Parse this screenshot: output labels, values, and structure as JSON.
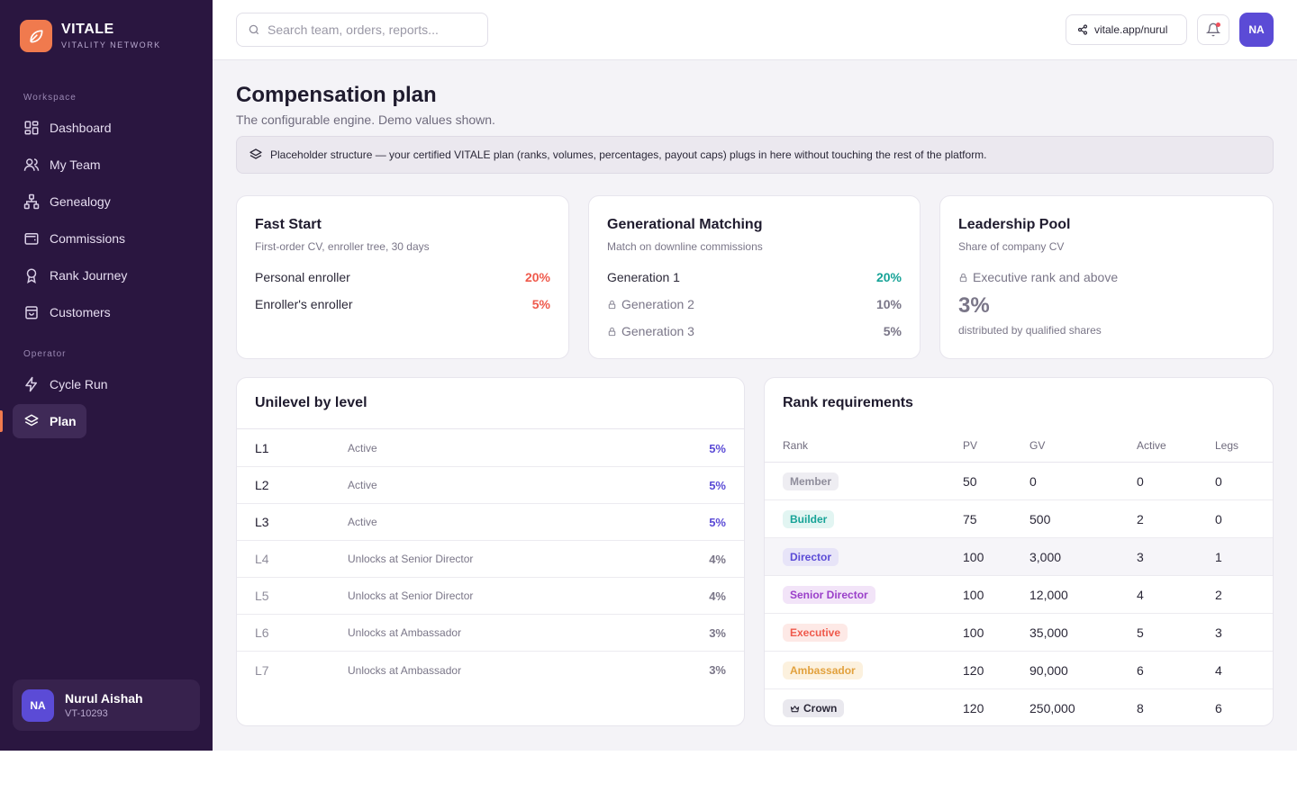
{
  "brand": {
    "name": "VITALE",
    "tagline": "VITALITY NETWORK"
  },
  "sidebar": {
    "sections": [
      {
        "label": "Workspace"
      },
      {
        "label": "Operator"
      }
    ],
    "items": [
      {
        "label": "Dashboard",
        "icon": "grid-icon"
      },
      {
        "label": "My Team",
        "icon": "users-icon"
      },
      {
        "label": "Genealogy",
        "icon": "tree-icon"
      },
      {
        "label": "Commissions",
        "icon": "wallet-icon"
      },
      {
        "label": "Rank Journey",
        "icon": "award-icon"
      },
      {
        "label": "Customers",
        "icon": "bag-icon"
      },
      {
        "label": "Cycle Run",
        "icon": "bolt-icon"
      },
      {
        "label": "Plan",
        "icon": "layers-icon",
        "active": true
      }
    ],
    "user": {
      "initials": "NA",
      "name": "Nurul Aishah",
      "id": "VT-10293"
    }
  },
  "topbar": {
    "search_placeholder": "Search team, orders, reports...",
    "share_link": "vitale.app/nurul",
    "avatar_initials": "NA"
  },
  "page": {
    "title": "Compensation plan",
    "subtitle": "The configurable engine. Demo values shown.",
    "notice": "Placeholder structure — your certified VITALE plan (ranks, volumes, percentages, payout caps) plugs in here without touching the rest of the platform."
  },
  "fast_start": {
    "title": "Fast Start",
    "subtitle": "First-order CV, enroller tree, 30 days",
    "rows": [
      {
        "label": "Personal enroller",
        "value": "20%"
      },
      {
        "label": "Enroller's enroller",
        "value": "5%"
      }
    ]
  },
  "generational": {
    "title": "Generational Matching",
    "subtitle": "Match on downline commissions",
    "rows": [
      {
        "label": "Generation 1",
        "value": "20%",
        "locked": false
      },
      {
        "label": "Generation 2",
        "value": "10%",
        "locked": true
      },
      {
        "label": "Generation 3",
        "value": "5%",
        "locked": true
      }
    ]
  },
  "leadership": {
    "title": "Leadership Pool",
    "subtitle": "Share of company CV",
    "requirement": "Executive rank and above",
    "value": "3%",
    "note": "distributed by qualified shares"
  },
  "unilevel": {
    "title": "Unilevel by level",
    "rows": [
      {
        "level": "L1",
        "status": "Active",
        "value": "5%"
      },
      {
        "level": "L2",
        "status": "Active",
        "value": "5%"
      },
      {
        "level": "L3",
        "status": "Active",
        "value": "5%"
      },
      {
        "level": "L4",
        "status": "Unlocks at Senior Director",
        "value": "4%"
      },
      {
        "level": "L5",
        "status": "Unlocks at Senior Director",
        "value": "4%"
      },
      {
        "level": "L6",
        "status": "Unlocks at Ambassador",
        "value": "3%"
      },
      {
        "level": "L7",
        "status": "Unlocks at Ambassador",
        "value": "3%"
      }
    ]
  },
  "ranks": {
    "title": "Rank requirements",
    "columns": [
      "Rank",
      "PV",
      "GV",
      "Active",
      "Legs"
    ],
    "rows": [
      {
        "rank": "Member",
        "pv": "50",
        "gv": "0",
        "active": "0",
        "legs": "0",
        "color": "#8f8d9b",
        "bg": "#eeedf2"
      },
      {
        "rank": "Builder",
        "pv": "75",
        "gv": "500",
        "active": "2",
        "legs": "0",
        "color": "#17a397",
        "bg": "#e2f5f2"
      },
      {
        "rank": "Director",
        "pv": "100",
        "gv": "3,000",
        "active": "3",
        "legs": "1",
        "color": "#5b4bd6",
        "bg": "#e7e4f8"
      },
      {
        "rank": "Senior Director",
        "pv": "100",
        "gv": "12,000",
        "active": "4",
        "legs": "2",
        "color": "#9a3fc9",
        "bg": "#f2e4f8"
      },
      {
        "rank": "Executive",
        "pv": "100",
        "gv": "35,000",
        "active": "5",
        "legs": "3",
        "color": "#ef5a4c",
        "bg": "#fde9e6"
      },
      {
        "rank": "Ambassador",
        "pv": "120",
        "gv": "90,000",
        "active": "6",
        "legs": "4",
        "color": "#e2a13d",
        "bg": "#fcf1de"
      },
      {
        "rank": "Crown",
        "pv": "120",
        "gv": "250,000",
        "active": "8",
        "legs": "6",
        "color": "#2b2838",
        "bg": "#e9e8ee",
        "icon": "crown-icon"
      }
    ]
  },
  "colors": {
    "sidebar_bg": "#2a1640",
    "accent_orange": "#f07a4e",
    "accent_purple": "#5b4bd6",
    "teal": "#17a397",
    "coral": "#ef5a4c"
  }
}
